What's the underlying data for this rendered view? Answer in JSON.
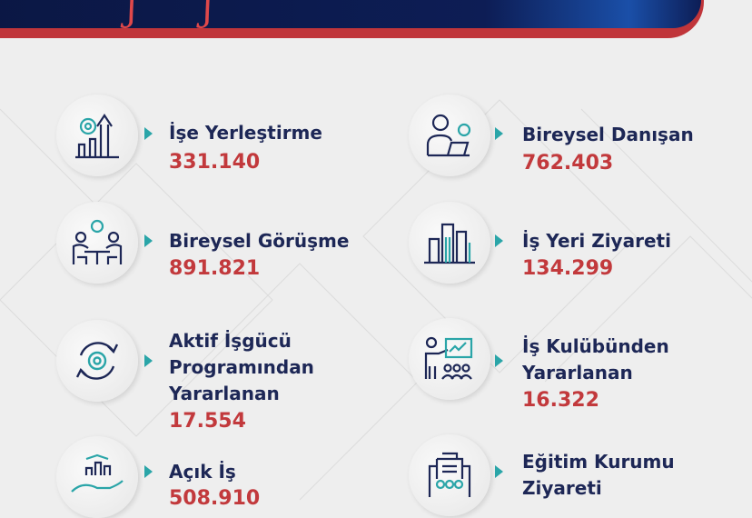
{
  "colors": {
    "navy": "#1d2756",
    "red": "#c2393c",
    "teal": "#2aa5a8",
    "background": "#eeeeee"
  },
  "items": [
    {
      "title": [
        "İşe Yerleştirme"
      ],
      "value": "331.140",
      "icon": "chart-growth-gear-icon"
    },
    {
      "title": [
        "Bireysel Danışan"
      ],
      "value": "762.403",
      "icon": "person-laptop-gear-icon"
    },
    {
      "title": [
        "Bireysel Görüşme"
      ],
      "value": "891.821",
      "icon": "meeting-table-icon"
    },
    {
      "title": [
        "İş Yeri Ziyareti"
      ],
      "value": "134.299",
      "icon": "buildings-icon"
    },
    {
      "title": [
        "Aktif İşgücü",
        "Programından",
        "Yararlanan"
      ],
      "value": "17.554",
      "icon": "cycle-gear-icon"
    },
    {
      "title": [
        "İş Kulübünden",
        "Yararlanan"
      ],
      "value": "16.322",
      "icon": "presentation-audience-icon"
    },
    {
      "title": [
        "Açık İş"
      ],
      "value": "508.910",
      "icon": "hand-chart-icon"
    },
    {
      "title": [
        "Eğitim Kurumu",
        "Ziyareti"
      ],
      "value": "",
      "icon": "school-group-icon"
    }
  ]
}
